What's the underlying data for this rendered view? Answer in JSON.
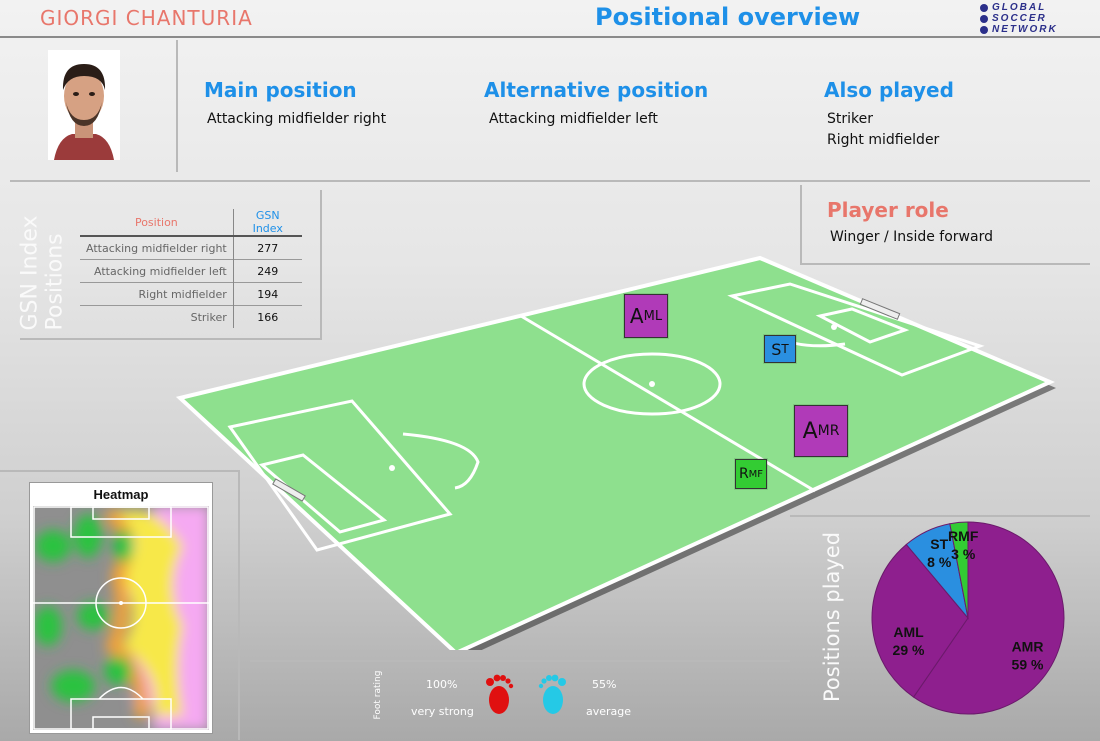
{
  "header": {
    "player_name": "GIORGI CHANTURIA",
    "page_title": "Positional overview",
    "brand_lines": [
      "GLOBAL",
      "SOCCER",
      "NETWORK"
    ]
  },
  "positions": {
    "main": {
      "title": "Main position",
      "lines": [
        "Attacking midfielder right"
      ]
    },
    "alternative": {
      "title": "Alternative position",
      "lines": [
        "Attacking midfielder left"
      ]
    },
    "also_played": {
      "title": "Also played",
      "lines": [
        "Striker",
        "Right midfielder"
      ]
    }
  },
  "player_role": {
    "title": "Player role",
    "value": "Winger / Inside forward"
  },
  "gsn_index": {
    "side_title_1": "GSN Index",
    "side_title_2": "Positions",
    "col_position": "Position",
    "col_index": "GSN Index",
    "rows": [
      {
        "position": "Attacking midfielder right",
        "index": "277"
      },
      {
        "position": "Attacking midfielder left",
        "index": "249"
      },
      {
        "position": "Right midfielder",
        "index": "194"
      },
      {
        "position": "Striker",
        "index": "166"
      }
    ]
  },
  "pitch_badges": {
    "aml": {
      "big": "A",
      "small": "ML",
      "color": "#b03ab8"
    },
    "st": {
      "big": "S",
      "small": "T",
      "color": "#2a8fe0"
    },
    "amr": {
      "big": "A",
      "small": "MR",
      "color": "#b03ab8"
    },
    "rmf": {
      "big": "R",
      "small": "MF",
      "color": "#33cc33"
    }
  },
  "heatmap": {
    "title": "Heatmap"
  },
  "foot_rating": {
    "label": "Foot rating",
    "left_value": "100%",
    "left_desc": "very strong",
    "left_color": "#e01010",
    "right_value": "55%",
    "right_desc": "average",
    "right_color": "#25c9e6"
  },
  "positions_played": {
    "title": "Positions played",
    "slices": [
      {
        "label": "AMR",
        "pct": "59 %",
        "value": 59,
        "color": "#8e1f8e"
      },
      {
        "label": "AML",
        "pct": "29 %",
        "value": 29,
        "color": "#8e1f8e"
      },
      {
        "label": "ST",
        "pct": "8 %",
        "value": 8,
        "color": "#2a8fe0"
      },
      {
        "label": "RMF",
        "pct": "3 %",
        "value": 3,
        "color": "#33cc33"
      }
    ]
  }
}
